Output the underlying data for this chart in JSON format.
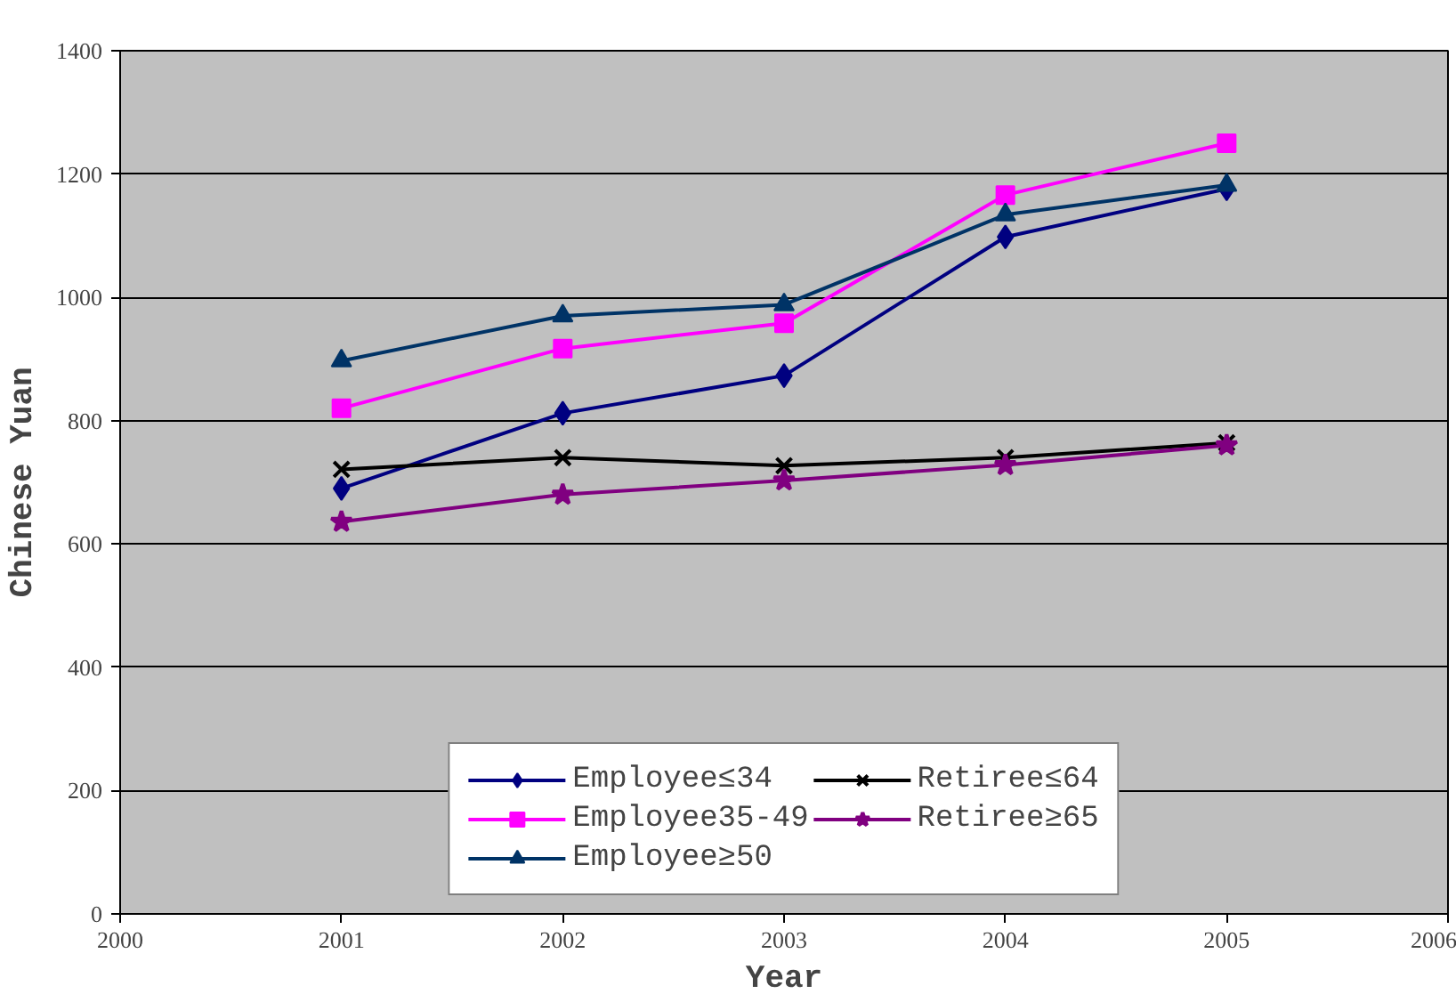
{
  "chart_data": {
    "type": "line",
    "xlabel": "Year",
    "ylabel": "Chinese Yuan",
    "x": [
      2001,
      2002,
      2003,
      2004,
      2005
    ],
    "xlim": [
      2000,
      2006
    ],
    "xticks": [
      2000,
      2001,
      2002,
      2003,
      2004,
      2005,
      2006
    ],
    "ylim": [
      0,
      1400
    ],
    "yticks": [
      0,
      200,
      400,
      600,
      800,
      1000,
      1200,
      1400
    ],
    "grid": "y",
    "legend": "bottom",
    "series": [
      {
        "name": "Employee≤34",
        "color": "#000080",
        "marker": "diamond",
        "values": [
          690,
          812,
          873,
          1098,
          1176
        ]
      },
      {
        "name": "Employee35-49",
        "color": "#ff00ff",
        "marker": "square",
        "values": [
          820,
          917,
          958,
          1166,
          1250
        ]
      },
      {
        "name": "Employee≥50",
        "color": "#003366",
        "marker": "triangle",
        "values": [
          897,
          970,
          988,
          1134,
          1182
        ]
      },
      {
        "name": "Retiree≤64",
        "color": "#000000",
        "marker": "cross",
        "values": [
          721,
          740,
          727,
          740,
          764
        ]
      },
      {
        "name": "Retiree≥65",
        "color": "#800080",
        "marker": "star",
        "values": [
          636,
          680,
          703,
          728,
          760
        ]
      }
    ]
  }
}
